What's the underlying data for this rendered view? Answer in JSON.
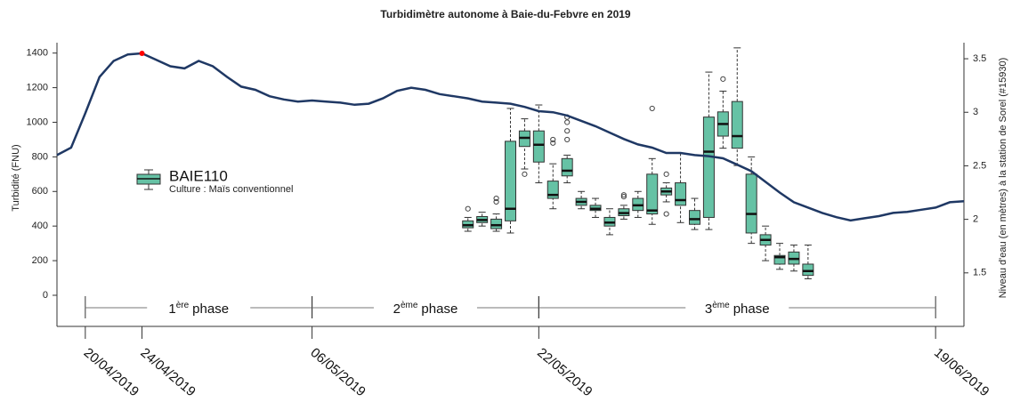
{
  "chart_data": {
    "type": "box_line",
    "title": "Turbidimètre autonome à Baie-du-Febvre en 2019",
    "ylabel": "Turbidité (FNU)",
    "y2label": "Niveau d'eau (en mètres) à la station de Sorel (#15930)",
    "xlim": [
      "2019-04-18",
      "2019-06-21"
    ],
    "xticks": [
      {
        "value": "2019-04-20",
        "label": "20/04/2019"
      },
      {
        "value": "2019-04-24",
        "label": "24/04/2019"
      },
      {
        "value": "2019-05-06",
        "label": "06/05/2019"
      },
      {
        "value": "2019-05-22",
        "label": "22/05/2019"
      },
      {
        "value": "2019-06-19",
        "label": "19/06/2019"
      }
    ],
    "ylim": [
      -180,
      1460
    ],
    "yticks": [
      0,
      200,
      400,
      600,
      800,
      1000,
      1200,
      1400
    ],
    "y2lim": [
      1.0,
      3.65
    ],
    "y2ticks": [
      1.5,
      2.0,
      2.5,
      3.0,
      3.5
    ],
    "legend": {
      "name": "BAIE110",
      "subtitle": "Culture : Maïs conventionnel"
    },
    "box_color": "#66c2a5",
    "boxes": [
      {
        "x": "2019-05-17",
        "whislo": 370,
        "q1": 390,
        "med": 405,
        "q3": 430,
        "whishi": 450,
        "fliers": [
          500
        ]
      },
      {
        "x": "2019-05-18",
        "whislo": 400,
        "q1": 420,
        "med": 435,
        "q3": 455,
        "whishi": 480,
        "fliers": []
      },
      {
        "x": "2019-05-19",
        "whislo": 370,
        "q1": 385,
        "med": 405,
        "q3": 440,
        "whishi": 470,
        "fliers": [
          540,
          560
        ]
      },
      {
        "x": "2019-05-20",
        "whislo": 360,
        "q1": 430,
        "med": 500,
        "q3": 890,
        "whishi": 1080,
        "fliers": []
      },
      {
        "x": "2019-05-21",
        "whislo": 730,
        "q1": 860,
        "med": 910,
        "q3": 950,
        "whishi": 1020,
        "fliers": [
          700
        ]
      },
      {
        "x": "2019-05-22",
        "whislo": 650,
        "q1": 770,
        "med": 870,
        "q3": 950,
        "whishi": 1100,
        "fliers": []
      },
      {
        "x": "2019-05-23",
        "whislo": 500,
        "q1": 560,
        "med": 580,
        "q3": 660,
        "whishi": 760,
        "fliers": [
          880,
          900
        ]
      },
      {
        "x": "2019-05-24",
        "whislo": 650,
        "q1": 690,
        "med": 720,
        "q3": 790,
        "whishi": 810,
        "fliers": [
          900,
          950,
          1000,
          1030
        ]
      },
      {
        "x": "2019-05-25",
        "whislo": 500,
        "q1": 520,
        "med": 540,
        "q3": 560,
        "whishi": 600,
        "fliers": []
      },
      {
        "x": "2019-05-26",
        "whislo": 450,
        "q1": 490,
        "med": 500,
        "q3": 520,
        "whishi": 560,
        "fliers": []
      },
      {
        "x": "2019-05-27",
        "whislo": 350,
        "q1": 400,
        "med": 420,
        "q3": 450,
        "whishi": 500,
        "fliers": []
      },
      {
        "x": "2019-05-28",
        "whislo": 440,
        "q1": 460,
        "med": 475,
        "q3": 500,
        "whishi": 520,
        "fliers": [
          570,
          580
        ]
      },
      {
        "x": "2019-05-29",
        "whislo": 450,
        "q1": 490,
        "med": 520,
        "q3": 560,
        "whishi": 600,
        "fliers": []
      },
      {
        "x": "2019-05-30",
        "whislo": 410,
        "q1": 470,
        "med": 490,
        "q3": 700,
        "whishi": 790,
        "fliers": [
          1080
        ]
      },
      {
        "x": "2019-05-31",
        "whislo": 540,
        "q1": 580,
        "med": 600,
        "q3": 620,
        "whishi": 650,
        "fliers": [
          470,
          700
        ]
      },
      {
        "x": "2019-06-01",
        "whislo": 420,
        "q1": 520,
        "med": 550,
        "q3": 650,
        "whishi": 820,
        "fliers": []
      },
      {
        "x": "2019-06-02",
        "whislo": 380,
        "q1": 410,
        "med": 440,
        "q3": 490,
        "whishi": 560,
        "fliers": []
      },
      {
        "x": "2019-06-03",
        "whislo": 380,
        "q1": 450,
        "med": 830,
        "q3": 1030,
        "whishi": 1290,
        "fliers": []
      },
      {
        "x": "2019-06-04",
        "whislo": 850,
        "q1": 920,
        "med": 990,
        "q3": 1060,
        "whishi": 1180,
        "fliers": [
          1250
        ]
      },
      {
        "x": "2019-06-05",
        "whislo": 750,
        "q1": 850,
        "med": 920,
        "q3": 1120,
        "whishi": 1430,
        "fliers": []
      },
      {
        "x": "2019-06-06",
        "whislo": 300,
        "q1": 360,
        "med": 470,
        "q3": 700,
        "whishi": 800,
        "fliers": []
      },
      {
        "x": "2019-06-07",
        "whislo": 200,
        "q1": 290,
        "med": 320,
        "q3": 350,
        "whishi": 400,
        "fliers": []
      },
      {
        "x": "2019-06-08",
        "whislo": 150,
        "q1": 180,
        "med": 220,
        "q3": 230,
        "whishi": 300,
        "fliers": []
      },
      {
        "x": "2019-06-09",
        "whislo": 140,
        "q1": 180,
        "med": 210,
        "q3": 250,
        "whishi": 290,
        "fliers": []
      },
      {
        "x": "2019-06-10",
        "whislo": 95,
        "q1": 115,
        "med": 140,
        "q3": 180,
        "whishi": 290,
        "fliers": []
      }
    ],
    "line": {
      "axis": "y2",
      "color": "#1f3864",
      "highlight_index": 6,
      "highlight_color": "#ff0000",
      "x": [
        "2019-04-18",
        "2019-04-19",
        "2019-04-20",
        "2019-04-21",
        "2019-04-22",
        "2019-04-23",
        "2019-04-24",
        "2019-04-25",
        "2019-04-26",
        "2019-04-27",
        "2019-04-28",
        "2019-04-29",
        "2019-04-30",
        "2019-05-01",
        "2019-05-02",
        "2019-05-03",
        "2019-05-04",
        "2019-05-05",
        "2019-05-06",
        "2019-05-07",
        "2019-05-08",
        "2019-05-09",
        "2019-05-10",
        "2019-05-11",
        "2019-05-12",
        "2019-05-13",
        "2019-05-14",
        "2019-05-15",
        "2019-05-16",
        "2019-05-17",
        "2019-05-18",
        "2019-05-19",
        "2019-05-20",
        "2019-05-21",
        "2019-05-22",
        "2019-05-23",
        "2019-05-24",
        "2019-05-25",
        "2019-05-26",
        "2019-05-27",
        "2019-05-28",
        "2019-05-29",
        "2019-05-30",
        "2019-05-31",
        "2019-06-01",
        "2019-06-02",
        "2019-06-03",
        "2019-06-04",
        "2019-06-05",
        "2019-06-06",
        "2019-06-07",
        "2019-06-08",
        "2019-06-09",
        "2019-06-10",
        "2019-06-11",
        "2019-06-12",
        "2019-06-13",
        "2019-06-14",
        "2019-06-15",
        "2019-06-16",
        "2019-06-17",
        "2019-06-18",
        "2019-06-19",
        "2019-06-20",
        "2019-06-21"
      ],
      "values": [
        2.6,
        2.67,
        2.99,
        3.33,
        3.48,
        3.54,
        3.55,
        3.49,
        3.43,
        3.41,
        3.48,
        3.43,
        3.33,
        3.24,
        3.21,
        3.15,
        3.12,
        3.1,
        3.11,
        3.1,
        3.09,
        3.07,
        3.08,
        3.13,
        3.2,
        3.23,
        3.21,
        3.17,
        3.15,
        3.13,
        3.1,
        3.09,
        3.08,
        3.05,
        3.01,
        3.0,
        2.97,
        2.92,
        2.87,
        2.81,
        2.75,
        2.7,
        2.67,
        2.62,
        2.62,
        2.6,
        2.59,
        2.57,
        2.51,
        2.45,
        2.35,
        2.25,
        2.16,
        2.11,
        2.06,
        2.02,
        1.99,
        2.01,
        2.03,
        2.06,
        2.07,
        2.09,
        2.11,
        2.16,
        2.17
      ]
    },
    "phases": [
      {
        "number": "1",
        "suffix": "ère",
        "word": "phase",
        "start": "2019-04-20",
        "end": "2019-05-06"
      },
      {
        "number": "2",
        "suffix": "ème",
        "word": "phase",
        "start": "2019-05-06",
        "end": "2019-05-22"
      },
      {
        "number": "3",
        "suffix": "ème",
        "word": "phase",
        "start": "2019-05-22",
        "end": "2019-06-19"
      }
    ]
  }
}
